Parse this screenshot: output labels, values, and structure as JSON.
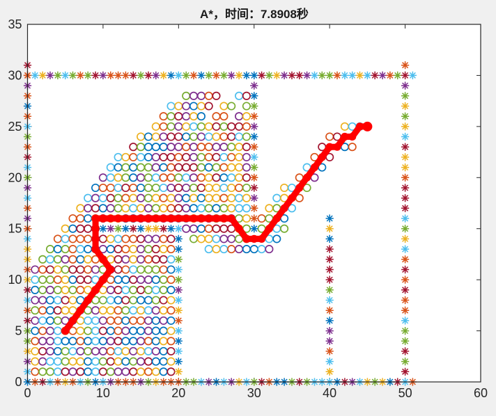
{
  "figure": {
    "background": "#F0F0F0",
    "plot_background": "#FFFFFF",
    "axis_color": "#262626"
  },
  "chart_data": {
    "type": "scatter",
    "title": "A*，时间：7.8908秒",
    "algorithm": "A*",
    "time_seconds": 7.8908,
    "xlim": [
      0,
      60
    ],
    "ylim": [
      0,
      35
    ],
    "x_ticks": [
      0,
      10,
      20,
      30,
      40,
      50,
      60
    ],
    "y_ticks": [
      0,
      5,
      10,
      15,
      20,
      25,
      30,
      35
    ],
    "grid": false,
    "legend": null,
    "marker_palette": [
      "#0072BD",
      "#D95319",
      "#EDB120",
      "#7E2F8E",
      "#77AC30",
      "#4DBEEE",
      "#A2142F"
    ],
    "obstacles": {
      "marker": "asterisk",
      "segments": [
        {
          "dir": "h",
          "y": 0,
          "from": 0,
          "to": 51
        },
        {
          "dir": "h",
          "y": 30,
          "from": 0,
          "to": 51
        },
        {
          "dir": "v",
          "x": 0,
          "from": 1,
          "to": 31
        },
        {
          "dir": "v",
          "x": 50,
          "from": 1,
          "to": 29
        },
        {
          "dir": "v",
          "x": 50,
          "from": 31,
          "to": 31
        },
        {
          "dir": "v",
          "x": 20,
          "from": 1,
          "to": 14
        },
        {
          "dir": "h",
          "y": 15,
          "from": 10,
          "to": 20
        },
        {
          "dir": "v",
          "x": 30,
          "from": 15,
          "to": 29
        },
        {
          "dir": "v",
          "x": 40,
          "from": 1,
          "to": 16
        }
      ]
    },
    "explored": {
      "marker": "circle",
      "rows": [
        {
          "y": 1,
          "from": 1,
          "to": 19
        },
        {
          "y": 2,
          "from": 1,
          "to": 19
        },
        {
          "y": 3,
          "from": 1,
          "to": 19
        },
        {
          "y": 4,
          "from": 1,
          "to": 19
        },
        {
          "y": 5,
          "from": 1,
          "to": 19
        },
        {
          "y": 6,
          "from": 1,
          "to": 19
        },
        {
          "y": 7,
          "from": 1,
          "to": 19
        },
        {
          "y": 8,
          "from": 1,
          "to": 19
        },
        {
          "y": 9,
          "from": 1,
          "to": 19
        },
        {
          "y": 10,
          "from": 1,
          "to": 19
        },
        {
          "y": 11,
          "from": 1,
          "to": 19
        },
        {
          "y": 12,
          "from": 2,
          "to": 19
        },
        {
          "y": 13,
          "from": 3,
          "to": 19
        },
        {
          "y": 13,
          "from": 24,
          "to": 29
        },
        {
          "y": 14,
          "from": 4,
          "to": 19
        },
        {
          "y": 14,
          "from": 22,
          "to": 29
        },
        {
          "y": 15,
          "from": 5,
          "to": 9
        },
        {
          "y": 15,
          "from": 21,
          "to": 29
        },
        {
          "y": 16,
          "from": 6,
          "to": 29
        },
        {
          "y": 17,
          "from": 7,
          "to": 29
        },
        {
          "y": 18,
          "from": 8,
          "to": 29
        },
        {
          "y": 19,
          "from": 9,
          "to": 29
        },
        {
          "y": 20,
          "from": 10,
          "to": 29
        },
        {
          "y": 21,
          "from": 11,
          "to": 29
        },
        {
          "y": 22,
          "from": 12,
          "to": 29
        },
        {
          "y": 23,
          "from": 14,
          "to": 29
        },
        {
          "y": 24,
          "from": 15,
          "to": 29
        },
        {
          "y": 25,
          "from": 17,
          "to": 29
        },
        {
          "y": 26,
          "from": 18,
          "to": 29,
          "skip": [
            24,
            27
          ]
        },
        {
          "y": 27,
          "from": 19,
          "to": 29,
          "skip": [
            25,
            28
          ]
        },
        {
          "y": 28,
          "from": 21,
          "to": 29,
          "skip": [
            26,
            27
          ]
        }
      ],
      "extra_cells": [
        [
          30,
          13
        ],
        [
          31,
          13
        ],
        [
          32,
          13
        ],
        [
          32,
          14
        ],
        [
          33,
          14
        ],
        [
          31,
          15
        ],
        [
          33,
          15
        ],
        [
          34,
          15
        ],
        [
          31,
          16
        ],
        [
          32,
          16
        ],
        [
          34,
          16
        ],
        [
          32,
          17
        ],
        [
          33,
          17
        ],
        [
          35,
          17
        ],
        [
          33,
          18
        ],
        [
          34,
          18
        ],
        [
          36,
          18
        ],
        [
          34,
          19
        ],
        [
          35,
          19
        ],
        [
          37,
          19
        ],
        [
          36,
          20
        ],
        [
          38,
          20
        ],
        [
          37,
          21
        ],
        [
          39,
          21
        ],
        [
          38,
          22
        ],
        [
          40,
          22
        ],
        [
          39,
          23
        ],
        [
          42,
          23
        ],
        [
          43,
          23
        ],
        [
          40,
          24
        ],
        [
          41,
          24
        ],
        [
          42,
          25
        ],
        [
          43,
          25
        ],
        [
          44,
          25
        ],
        [
          45,
          25
        ]
      ]
    },
    "path": {
      "color": "#FF0000",
      "start": [
        5,
        5
      ],
      "goal": [
        45,
        25
      ],
      "points": [
        [
          5,
          5
        ],
        [
          6,
          6
        ],
        [
          7,
          7
        ],
        [
          8,
          8
        ],
        [
          9,
          9
        ],
        [
          10,
          10
        ],
        [
          11,
          11
        ],
        [
          10,
          12
        ],
        [
          9,
          13
        ],
        [
          9,
          14
        ],
        [
          9,
          15
        ],
        [
          9,
          16
        ],
        [
          10,
          16
        ],
        [
          11,
          16
        ],
        [
          12,
          16
        ],
        [
          13,
          16
        ],
        [
          14,
          16
        ],
        [
          15,
          16
        ],
        [
          16,
          16
        ],
        [
          17,
          16
        ],
        [
          18,
          16
        ],
        [
          19,
          16
        ],
        [
          20,
          16
        ],
        [
          21,
          16
        ],
        [
          22,
          16
        ],
        [
          23,
          16
        ],
        [
          24,
          16
        ],
        [
          25,
          16
        ],
        [
          26,
          16
        ],
        [
          27,
          16
        ],
        [
          28,
          15
        ],
        [
          29,
          14
        ],
        [
          30,
          14
        ],
        [
          31,
          14
        ],
        [
          32,
          15
        ],
        [
          33,
          16
        ],
        [
          34,
          17
        ],
        [
          35,
          18
        ],
        [
          36,
          19
        ],
        [
          37,
          20
        ],
        [
          38,
          21
        ],
        [
          39,
          22
        ],
        [
          40,
          23
        ],
        [
          41,
          23
        ],
        [
          42,
          24
        ],
        [
          43,
          24
        ],
        [
          44,
          25
        ],
        [
          45,
          25
        ]
      ]
    }
  }
}
